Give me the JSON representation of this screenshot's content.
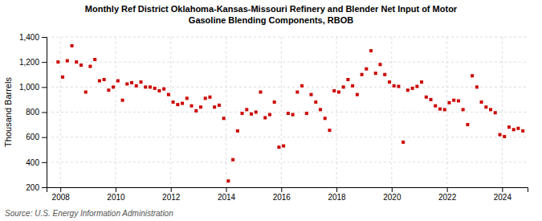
{
  "chart_data": {
    "type": "scatter",
    "title": "Monthly Ref District Oklahoma-Kansas-Missouri Refinery and Blender Net Input of Motor\nGasoline Blending Components, RBOB",
    "ylabel": "Thousand Barrels",
    "annotations": [
      "Source: U.S. Energy Information Administration"
    ],
    "color": "#cc0000",
    "marker": "square",
    "grid": true,
    "xlim": [
      2007.5,
      2024.92
    ],
    "xticks": [
      2008,
      2010,
      2012,
      2014,
      2016,
      2018,
      2020,
      2022,
      2024
    ],
    "ylim": [
      200,
      1400
    ],
    "yticks": [
      200,
      400,
      600,
      800,
      {
        "value": 1000,
        "label": "1,000"
      },
      {
        "value": 1200,
        "label": "1,200"
      },
      {
        "value": 1400,
        "label": "1,400"
      }
    ],
    "x": [
      2007.917,
      2008.083,
      2008.25,
      2008.417,
      2008.583,
      2008.75,
      2008.917,
      2009.083,
      2009.25,
      2009.417,
      2009.583,
      2009.75,
      2009.917,
      2010.083,
      2010.25,
      2010.417,
      2010.583,
      2010.75,
      2010.917,
      2011.083,
      2011.25,
      2011.417,
      2011.583,
      2011.75,
      2011.917,
      2012.083,
      2012.25,
      2012.417,
      2012.583,
      2012.75,
      2012.917,
      2013.083,
      2013.25,
      2013.417,
      2013.583,
      2013.75,
      2013.917,
      2014.083,
      2014.25,
      2014.417,
      2014.583,
      2014.75,
      2014.917,
      2015.083,
      2015.25,
      2015.417,
      2015.583,
      2015.75,
      2015.917,
      2016.083,
      2016.25,
      2016.417,
      2016.583,
      2016.75,
      2016.917,
      2017.083,
      2017.25,
      2017.417,
      2017.583,
      2017.75,
      2017.917,
      2018.083,
      2018.25,
      2018.417,
      2018.583,
      2018.75,
      2018.917,
      2019.083,
      2019.25,
      2019.417,
      2019.583,
      2019.75,
      2019.917,
      2020.083,
      2020.25,
      2020.417,
      2020.583,
      2020.75,
      2020.917,
      2021.083,
      2021.25,
      2021.417,
      2021.583,
      2021.75,
      2021.917,
      2022.083,
      2022.25,
      2022.417,
      2022.583,
      2022.75,
      2022.917,
      2023.083,
      2023.25,
      2023.417,
      2023.583,
      2023.75,
      2023.917,
      2024.083,
      2024.25,
      2024.417,
      2024.583,
      2024.75
    ],
    "values": [
      1200,
      1080,
      1210,
      1330,
      1200,
      1175,
      960,
      1165,
      1220,
      1050,
      1060,
      975,
      1000,
      1050,
      895,
      1025,
      1035,
      1010,
      1040,
      1000,
      1000,
      990,
      970,
      985,
      940,
      880,
      860,
      870,
      910,
      850,
      810,
      840,
      910,
      920,
      840,
      855,
      750,
      250,
      420,
      650,
      790,
      820,
      785,
      800,
      960,
      755,
      780,
      880,
      520,
      530,
      790,
      780,
      960,
      1010,
      790,
      940,
      880,
      820,
      750,
      655,
      970,
      960,
      1000,
      1060,
      1010,
      940,
      1100,
      1145,
      1290,
      1110,
      1180,
      1100,
      1040,
      1010,
      1005,
      560,
      975,
      990,
      1005,
      1040,
      920,
      900,
      850,
      825,
      820,
      875,
      895,
      890,
      820,
      700,
      1090,
      1000,
      880,
      840,
      820,
      795,
      620,
      605,
      680,
      660,
      670,
      650
    ]
  }
}
